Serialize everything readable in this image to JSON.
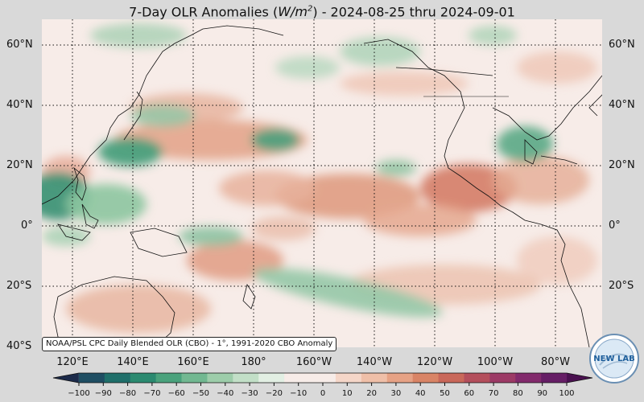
{
  "title": {
    "prefix": "7-Day OLR Anomalies (",
    "unit_w": "W/m",
    "unit_exp": "2",
    "suffix": ") - 2024-08-25 thru 2024-09-01"
  },
  "lat_labels": [
    "60°N",
    "40°N",
    "20°N",
    "0°",
    "20°S",
    "40°S"
  ],
  "lon_labels": [
    "120°E",
    "140°E",
    "160°E",
    "180°",
    "160°W",
    "140°W",
    "120°W",
    "100°W",
    "80°W"
  ],
  "credit": "NOAA/PSL CPC Daily Blended OLR (CBO) - 1°, 1991-2020 CBO Anomaly",
  "colorbar": {
    "ticks": [
      "−100",
      "−90",
      "−80",
      "−70",
      "−60",
      "−50",
      "−40",
      "−30",
      "−20",
      "−10",
      "0",
      "10",
      "20",
      "30",
      "40",
      "50",
      "60",
      "70",
      "80",
      "90",
      "100"
    ],
    "colors": [
      "#1b2a4a",
      "#1f4e63",
      "#1f6f6a",
      "#2b8a70",
      "#4aa27c",
      "#72b891",
      "#9dcdaa",
      "#c2dfc7",
      "#e2efe3",
      "#f7ece8",
      "#f7ece8",
      "#f5d6c8",
      "#efbfa8",
      "#e6a285",
      "#d98466",
      "#c9685a",
      "#b44f5c",
      "#9c3a66",
      "#822a6c",
      "#661e66",
      "#4a1150"
    ]
  },
  "logo": {
    "text": "NEW LAB"
  }
}
